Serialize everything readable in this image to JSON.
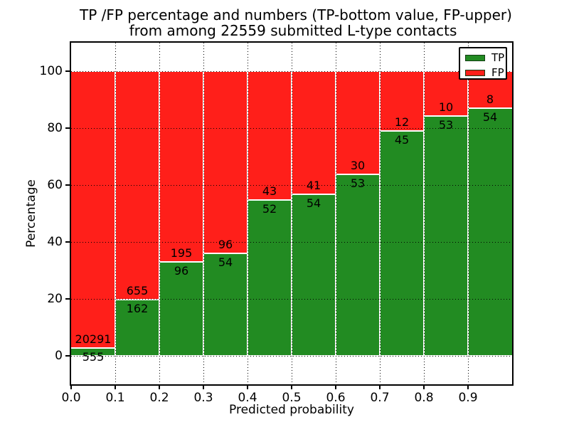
{
  "chart_data": {
    "type": "bar",
    "subtype": "stacked-percentage",
    "title_line1": "TP /FP percentage and numbers (TP-bottom value, FP-upper)",
    "title_line2": "from among 22559 submitted L-type contacts",
    "xlabel": "Predicted probability",
    "ylabel": "Percentage",
    "total_submitted": 22559,
    "xlim": [
      0,
      1
    ],
    "ylim": [
      -10,
      110
    ],
    "bin_width": 0.1,
    "grid": "dotted",
    "x_tick_labels": [
      "0.0",
      "0.1",
      "0.2",
      "0.3",
      "0.4",
      "0.5",
      "0.6",
      "0.7",
      "0.8",
      "0.9"
    ],
    "y_ticks": [
      0,
      20,
      40,
      60,
      80,
      100
    ],
    "series": [
      {
        "name": "TP",
        "color": "#228B22",
        "counts": [
          555,
          162,
          96,
          54,
          52,
          54,
          53,
          45,
          53,
          54
        ]
      },
      {
        "name": "FP",
        "color": "#FF1F1A",
        "counts": [
          20291,
          655,
          195,
          96,
          43,
          41,
          30,
          12,
          10,
          8
        ]
      }
    ],
    "tp_percent_of_bin": [
      2.66,
      19.83,
      32.99,
      36.0,
      54.74,
      56.84,
      63.86,
      78.95,
      84.13,
      87.1
    ],
    "legend": {
      "position": "upper-right",
      "entries": [
        {
          "label": "TP",
          "color": "#228B22"
        },
        {
          "label": "FP",
          "color": "#FF1F1A"
        }
      ]
    },
    "colors": {
      "axis": "#000000",
      "background": "#ffffff",
      "bar_edge": "#ffffff"
    }
  }
}
